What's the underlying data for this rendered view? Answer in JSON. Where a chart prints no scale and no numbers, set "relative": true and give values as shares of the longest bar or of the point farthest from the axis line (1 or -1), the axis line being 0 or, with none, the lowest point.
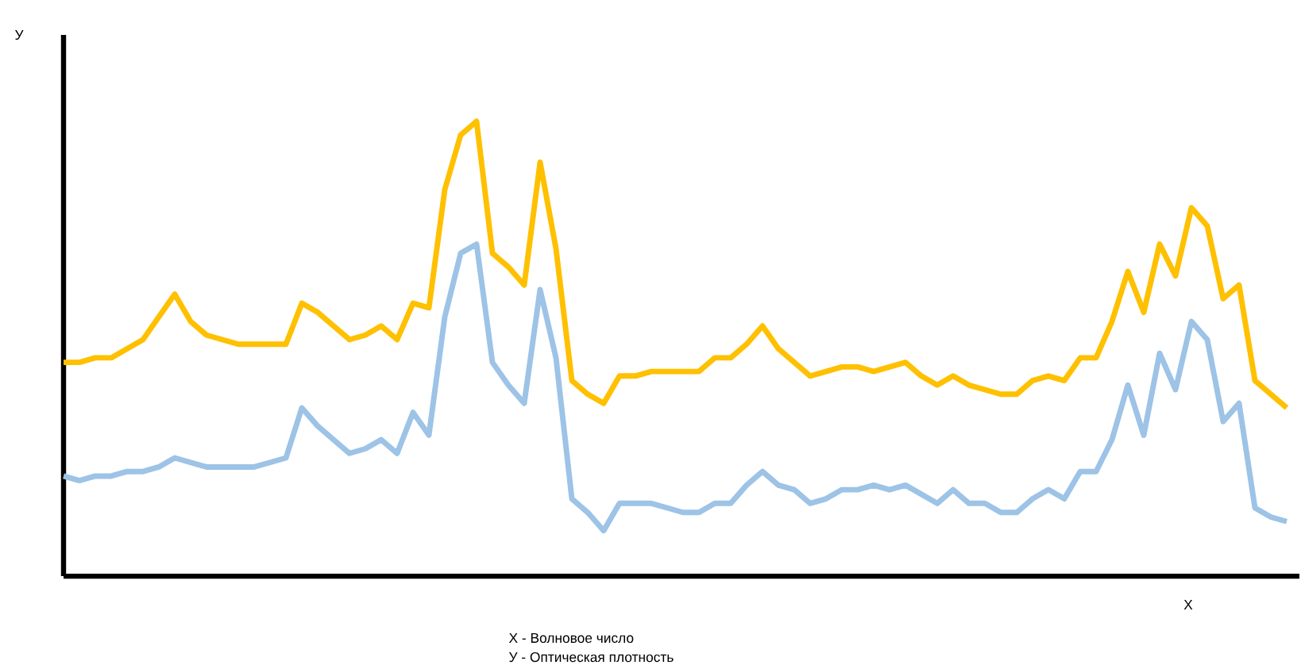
{
  "chart_data": {
    "type": "line",
    "relative": true,
    "xlabel": "Х",
    "categories": [
      null,
      null,
      null,
      null,
      null,
      null,
      null,
      null,
      null,
      null,
      null,
      null,
      null,
      null,
      null,
      null,
      null,
      null,
      null,
      null,
      null,
      null,
      null,
      null,
      null,
      null,
      null,
      null,
      null,
      null,
      null,
      null,
      null,
      null,
      null,
      null,
      null,
      null,
      null,
      null,
      null,
      null,
      null,
      null,
      null,
      null,
      null,
      null,
      null,
      null,
      null,
      null,
      null,
      null,
      null,
      null,
      null,
      null,
      null,
      null,
      null,
      null,
      null,
      null,
      null,
      null,
      null,
      null,
      null,
      null,
      null,
      null,
      null,
      null,
      null,
      null,
      null,
      null
    ],
    "series": [
      {
        "color": "#ffc000",
        "values": [
          0.47,
          0.47,
          0.48,
          0.48,
          0.5,
          0.52,
          0.57,
          0.62,
          0.56,
          0.53,
          0.52,
          0.51,
          0.51,
          0.51,
          0.51,
          0.6,
          0.58,
          0.55,
          0.52,
          0.53,
          0.55,
          0.52,
          0.6,
          0.59,
          0.85,
          0.97,
          1.0,
          0.71,
          0.68,
          0.64,
          0.91,
          0.72,
          0.43,
          0.4,
          0.38,
          0.44,
          0.44,
          0.45,
          0.45,
          0.45,
          0.45,
          0.48,
          0.48,
          0.51,
          0.55,
          0.5,
          0.47,
          0.44,
          0.45,
          0.46,
          0.46,
          0.45,
          0.46,
          0.47,
          0.44,
          0.42,
          0.44,
          0.42,
          0.41,
          0.4,
          0.4,
          0.43,
          0.44,
          0.43,
          0.48,
          0.48,
          0.56,
          0.67,
          0.58,
          0.73,
          0.66,
          0.81,
          0.77,
          0.61,
          0.64,
          0.43,
          0.4,
          0.37
        ]
      },
      {
        "color": "#9dc3e6",
        "values": [
          0.22,
          0.21,
          0.22,
          0.22,
          0.23,
          0.23,
          0.24,
          0.26,
          0.25,
          0.24,
          0.24,
          0.24,
          0.24,
          0.25,
          0.26,
          0.37,
          0.33,
          0.3,
          0.27,
          0.28,
          0.3,
          0.27,
          0.36,
          0.31,
          0.57,
          0.71,
          0.73,
          0.47,
          0.42,
          0.38,
          0.63,
          0.48,
          0.17,
          0.14,
          0.1,
          0.16,
          0.16,
          0.16,
          0.15,
          0.14,
          0.14,
          0.16,
          0.16,
          0.2,
          0.23,
          0.2,
          0.19,
          0.16,
          0.17,
          0.19,
          0.19,
          0.2,
          0.19,
          0.2,
          0.18,
          0.16,
          0.19,
          0.16,
          0.16,
          0.14,
          0.14,
          0.17,
          0.19,
          0.17,
          0.23,
          0.23,
          0.3,
          0.42,
          0.31,
          0.49,
          0.41,
          0.56,
          0.52,
          0.34,
          0.38,
          0.15,
          0.13,
          0.12
        ]
      }
    ],
    "annotations": [
      "У",
      "Х - Волновое число",
      "У - Оптическая плотность"
    ]
  }
}
